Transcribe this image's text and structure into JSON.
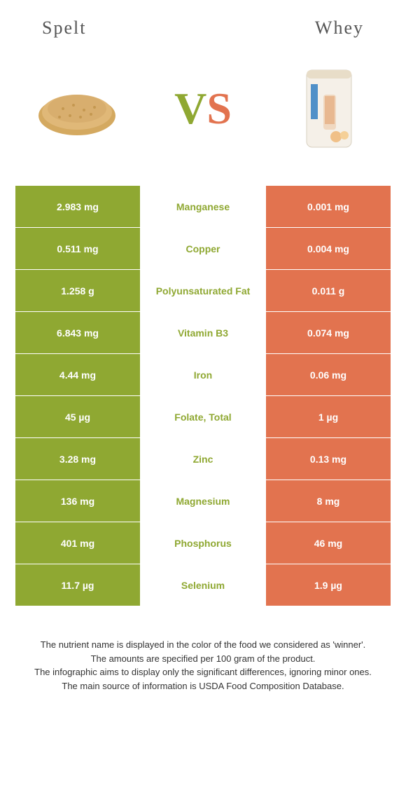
{
  "header": {
    "left_title": "Spelt",
    "right_title": "Whey",
    "vs_v": "V",
    "vs_s": "S"
  },
  "colors": {
    "left_food": "#8fa832",
    "right_food": "#e2734f",
    "background": "#ffffff",
    "text": "#333333"
  },
  "comparison": {
    "type": "table",
    "rows": [
      {
        "left": "2.983 mg",
        "label": "Manganese",
        "right": "0.001 mg",
        "winner": "left"
      },
      {
        "left": "0.511 mg",
        "label": "Copper",
        "right": "0.004 mg",
        "winner": "left"
      },
      {
        "left": "1.258 g",
        "label": "Polyunsaturated fat",
        "right": "0.011 g",
        "winner": "left"
      },
      {
        "left": "6.843 mg",
        "label": "Vitamin B3",
        "right": "0.074 mg",
        "winner": "left"
      },
      {
        "left": "4.44 mg",
        "label": "Iron",
        "right": "0.06 mg",
        "winner": "left"
      },
      {
        "left": "45 µg",
        "label": "Folate, total",
        "right": "1 µg",
        "winner": "left"
      },
      {
        "left": "3.28 mg",
        "label": "Zinc",
        "right": "0.13 mg",
        "winner": "left"
      },
      {
        "left": "136 mg",
        "label": "Magnesium",
        "right": "8 mg",
        "winner": "left"
      },
      {
        "left": "401 mg",
        "label": "Phosphorus",
        "right": "46 mg",
        "winner": "left"
      },
      {
        "left": "11.7 µg",
        "label": "Selenium",
        "right": "1.9 µg",
        "winner": "left"
      }
    ]
  },
  "footnote": {
    "line1": "The nutrient name is displayed in the color of the food we considered as 'winner'.",
    "line2": "The amounts are specified per 100 gram of the product.",
    "line3": "The infographic aims to display only the significant differences, ignoring minor ones.",
    "line4": "The main source of information is USDA Food Composition Database."
  }
}
